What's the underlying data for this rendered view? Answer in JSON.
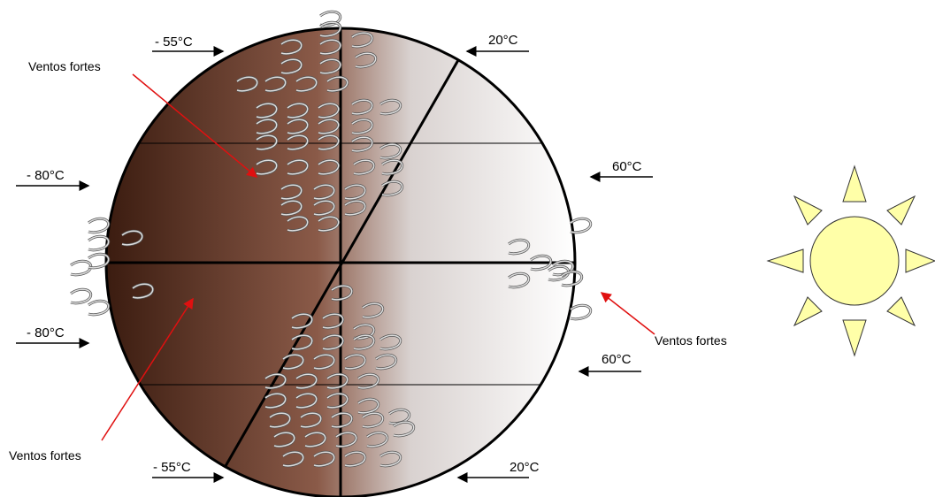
{
  "temperatures": [
    "- 55°C",
    "20°C",
    "- 80°C",
    "60°C",
    "- 80°C",
    "60°C",
    "- 55°C",
    "20°C"
  ],
  "annotations": [
    "Ventos fortes",
    "Ventos fortes",
    "Ventos fortes"
  ]
}
